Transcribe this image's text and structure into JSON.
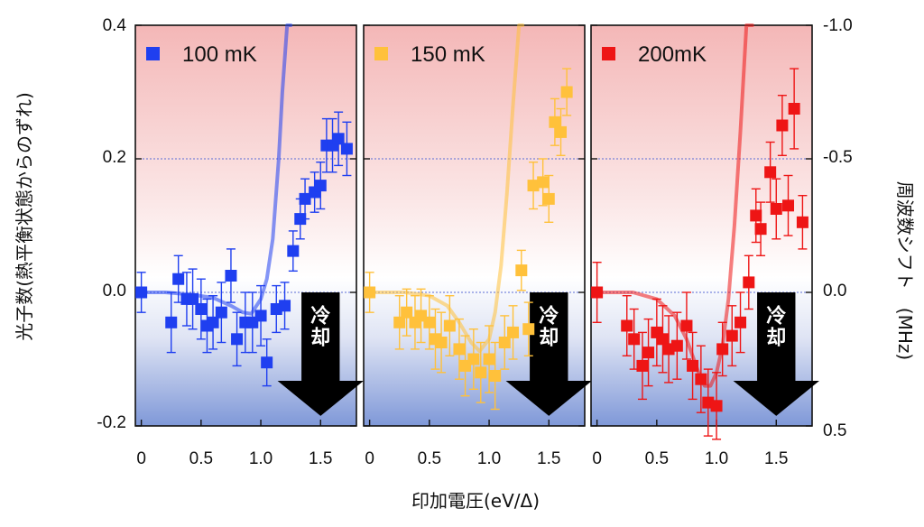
{
  "colors": {
    "panel_100mK": "#1f3ff0",
    "panel_150mK": "#ffc13b",
    "panel_200mK": "#ee1515",
    "bg_top": "#f4b7b7",
    "bg_bottom": "#7f98d8",
    "arrow": "#000000"
  },
  "chart_data": {
    "type": "scatter",
    "xlabel": "印加電圧(eV/Δ)",
    "ylabel_left": "光子数(熱平衡状態からのずれ)",
    "ylabel_right": "周波数シフト　(MHz)",
    "x_ticks": [
      "0",
      "0.5",
      "1.0",
      "1.5"
    ],
    "y_ticks_left": [
      "0.4",
      "0.2",
      "0.0",
      "-0.2"
    ],
    "y_ticks_right": [
      "-1.0",
      "-0.5",
      "0.0",
      "0.5"
    ],
    "xlim": [
      -0.05,
      1.8
    ],
    "ylim": [
      -0.2,
      0.4
    ],
    "right_axis_scale": "photon = -0.4 × shift(MHz)",
    "grid": "dashed horizontal lines at 0.0 and 0.2",
    "background": "gradient: red (positive) to blue (negative)",
    "cooling_label": "冷却",
    "panels": [
      {
        "legend": "100 mK",
        "color": "#1f3ff0",
        "points": [
          {
            "x": 0.0,
            "y": 0.0,
            "err": 0.03
          },
          {
            "x": 0.25,
            "y": -0.045,
            "err": 0.045
          },
          {
            "x": 0.31,
            "y": 0.02,
            "err": 0.035
          },
          {
            "x": 0.38,
            "y": -0.01,
            "err": 0.04
          },
          {
            "x": 0.43,
            "y": -0.01,
            "err": 0.045
          },
          {
            "x": 0.5,
            "y": -0.025,
            "err": 0.045
          },
          {
            "x": 0.55,
            "y": -0.05,
            "err": 0.04
          },
          {
            "x": 0.6,
            "y": -0.045,
            "err": 0.04
          },
          {
            "x": 0.67,
            "y": -0.03,
            "err": 0.045
          },
          {
            "x": 0.75,
            "y": 0.025,
            "err": 0.04
          },
          {
            "x": 0.8,
            "y": -0.07,
            "err": 0.04
          },
          {
            "x": 0.87,
            "y": -0.045,
            "err": 0.045
          },
          {
            "x": 0.93,
            "y": -0.045,
            "err": 0.045
          },
          {
            "x": 1.0,
            "y": -0.035,
            "err": 0.045
          },
          {
            "x": 1.05,
            "y": -0.105,
            "err": 0.035
          },
          {
            "x": 1.13,
            "y": -0.025,
            "err": 0.035
          },
          {
            "x": 1.2,
            "y": -0.02,
            "err": 0.035
          },
          {
            "x": 1.27,
            "y": 0.062,
            "err": 0.03
          },
          {
            "x": 1.33,
            "y": 0.11,
            "err": 0.03
          },
          {
            "x": 1.37,
            "y": 0.14,
            "err": 0.03
          },
          {
            "x": 1.45,
            "y": 0.15,
            "err": 0.03
          },
          {
            "x": 1.5,
            "y": 0.16,
            "err": 0.035
          },
          {
            "x": 1.55,
            "y": 0.22,
            "err": 0.04
          },
          {
            "x": 1.6,
            "y": 0.22,
            "err": 0.04
          },
          {
            "x": 1.65,
            "y": 0.23,
            "err": 0.04
          },
          {
            "x": 1.72,
            "y": 0.215,
            "err": 0.04
          }
        ],
        "theory_curve": {
          "x": [
            0,
            0.2,
            0.4,
            0.6,
            0.75,
            0.85,
            0.92,
            1.0,
            1.05,
            1.1,
            1.15,
            1.18,
            1.22,
            1.25
          ],
          "y": [
            0,
            0,
            -0.003,
            -0.008,
            -0.02,
            -0.03,
            -0.032,
            -0.01,
            0.02,
            0.08,
            0.2,
            0.3,
            0.42,
            0.55
          ]
        }
      },
      {
        "legend": "150 mK",
        "color": "#ffc13b",
        "points": [
          {
            "x": 0.0,
            "y": 0.0,
            "err": 0.03
          },
          {
            "x": 0.25,
            "y": -0.045,
            "err": 0.04
          },
          {
            "x": 0.31,
            "y": -0.03,
            "err": 0.035
          },
          {
            "x": 0.38,
            "y": -0.045,
            "err": 0.04
          },
          {
            "x": 0.43,
            "y": -0.035,
            "err": 0.04
          },
          {
            "x": 0.5,
            "y": -0.045,
            "err": 0.04
          },
          {
            "x": 0.55,
            "y": -0.07,
            "err": 0.045
          },
          {
            "x": 0.6,
            "y": -0.075,
            "err": 0.045
          },
          {
            "x": 0.67,
            "y": -0.05,
            "err": 0.045
          },
          {
            "x": 0.75,
            "y": -0.085,
            "err": 0.045
          },
          {
            "x": 0.8,
            "y": -0.11,
            "err": 0.045
          },
          {
            "x": 0.87,
            "y": -0.1,
            "err": 0.045
          },
          {
            "x": 0.93,
            "y": -0.12,
            "err": 0.045
          },
          {
            "x": 1.0,
            "y": -0.1,
            "err": 0.05
          },
          {
            "x": 1.05,
            "y": -0.125,
            "err": 0.05
          },
          {
            "x": 1.13,
            "y": -0.075,
            "err": 0.04
          },
          {
            "x": 1.2,
            "y": -0.06,
            "err": 0.04
          },
          {
            "x": 1.27,
            "y": 0.033,
            "err": 0.03
          },
          {
            "x": 1.33,
            "y": -0.055,
            "err": 0.04
          },
          {
            "x": 1.37,
            "y": 0.16,
            "err": 0.035
          },
          {
            "x": 1.45,
            "y": 0.165,
            "err": 0.035
          },
          {
            "x": 1.5,
            "y": 0.14,
            "err": 0.035
          },
          {
            "x": 1.55,
            "y": 0.255,
            "err": 0.035
          },
          {
            "x": 1.6,
            "y": 0.24,
            "err": 0.035
          },
          {
            "x": 1.65,
            "y": 0.3,
            "err": 0.035
          }
        ],
        "theory_curve": {
          "x": [
            0,
            0.3,
            0.5,
            0.65,
            0.75,
            0.85,
            0.92,
            1.0,
            1.05,
            1.1,
            1.15,
            1.2,
            1.25,
            1.28
          ],
          "y": [
            0,
            0,
            -0.005,
            -0.02,
            -0.045,
            -0.075,
            -0.088,
            -0.07,
            -0.03,
            0.04,
            0.15,
            0.28,
            0.42,
            0.55
          ]
        }
      },
      {
        "legend": "200mK",
        "color": "#ee1515",
        "points": [
          {
            "x": 0.0,
            "y": 0.0,
            "err": 0.045
          },
          {
            "x": 0.25,
            "y": -0.05,
            "err": 0.045
          },
          {
            "x": 0.31,
            "y": -0.07,
            "err": 0.045
          },
          {
            "x": 0.38,
            "y": -0.11,
            "err": 0.05
          },
          {
            "x": 0.43,
            "y": -0.09,
            "err": 0.05
          },
          {
            "x": 0.5,
            "y": -0.06,
            "err": 0.05
          },
          {
            "x": 0.55,
            "y": -0.07,
            "err": 0.05
          },
          {
            "x": 0.6,
            "y": -0.085,
            "err": 0.05
          },
          {
            "x": 0.67,
            "y": -0.08,
            "err": 0.05
          },
          {
            "x": 0.75,
            "y": -0.05,
            "err": 0.05
          },
          {
            "x": 0.8,
            "y": -0.11,
            "err": 0.05
          },
          {
            "x": 0.87,
            "y": -0.13,
            "err": 0.05
          },
          {
            "x": 0.93,
            "y": -0.165,
            "err": 0.05
          },
          {
            "x": 1.0,
            "y": -0.17,
            "err": 0.05
          },
          {
            "x": 1.05,
            "y": -0.085,
            "err": 0.04
          },
          {
            "x": 1.13,
            "y": -0.065,
            "err": 0.045
          },
          {
            "x": 1.2,
            "y": -0.045,
            "err": 0.045
          },
          {
            "x": 1.27,
            "y": 0.015,
            "err": 0.04
          },
          {
            "x": 1.33,
            "y": 0.115,
            "err": 0.04
          },
          {
            "x": 1.37,
            "y": 0.095,
            "err": 0.04
          },
          {
            "x": 1.45,
            "y": 0.18,
            "err": 0.045
          },
          {
            "x": 1.5,
            "y": 0.125,
            "err": 0.045
          },
          {
            "x": 1.55,
            "y": 0.25,
            "err": 0.045
          },
          {
            "x": 1.6,
            "y": 0.13,
            "err": 0.045
          },
          {
            "x": 1.65,
            "y": 0.275,
            "err": 0.06
          },
          {
            "x": 1.72,
            "y": 0.105,
            "err": 0.04
          }
        ],
        "theory_curve": {
          "x": [
            0,
            0.3,
            0.5,
            0.65,
            0.75,
            0.85,
            0.9,
            0.95,
            1.0,
            1.05,
            1.1,
            1.15,
            1.2,
            1.25,
            1.3
          ],
          "y": [
            0,
            0,
            -0.01,
            -0.035,
            -0.07,
            -0.12,
            -0.14,
            -0.14,
            -0.12,
            -0.08,
            -0.01,
            0.1,
            0.24,
            0.4,
            0.55
          ]
        }
      }
    ]
  }
}
